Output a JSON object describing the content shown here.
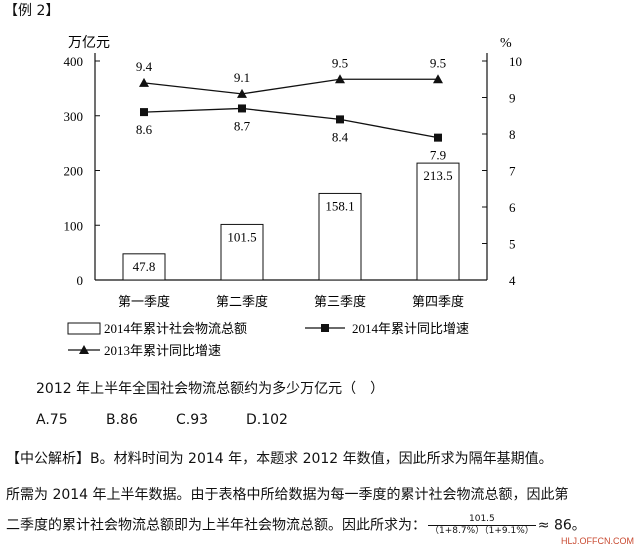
{
  "example_tag": "【例 2】",
  "chart_data": {
    "type": "bar+line",
    "left_axis_unit": "万亿元",
    "right_axis_unit": "%",
    "categories": [
      "第一季度",
      "第二季度",
      "第三季度",
      "第四季度"
    ],
    "left_ylim": [
      0,
      400
    ],
    "left_ticks": [
      0,
      100,
      200,
      300,
      400
    ],
    "right_ylim": [
      4,
      10
    ],
    "right_ticks": [
      4,
      5,
      6,
      7,
      8,
      9,
      10
    ],
    "series": [
      {
        "name": "2014年累计社会物流总额",
        "kind": "bar",
        "axis": "left",
        "values": [
          47.8,
          101.5,
          158.1,
          213.5
        ]
      },
      {
        "name": "2014年累计同比增速",
        "kind": "line",
        "marker": "square",
        "axis": "right",
        "values": [
          8.6,
          8.7,
          8.4,
          7.9
        ]
      },
      {
        "name": "2013年累计同比增速",
        "kind": "line",
        "marker": "triangle",
        "axis": "right",
        "values": [
          9.4,
          9.1,
          9.5,
          9.5
        ]
      }
    ],
    "grid": false,
    "legend_placement": "bottom"
  },
  "question": "2012 年上半年全国社会物流总额约为多少万亿元（　）",
  "options": [
    "A.75",
    "B.86",
    "C.93",
    "D.102"
  ],
  "analysis": {
    "line1": "【中公解析】B。材料时间为 2014 年，本题求 2012 年数值，因此所求为隔年基期值。",
    "line2": "所需为 2014 年上半年数据。由于表格中所给数据为每一季度的累计社会物流总额，因此第",
    "line3_prefix": "二季度的累计社会物流总额即为上半年社会物流总额。因此所求为：",
    "frac_num": "101.5",
    "frac_den": "（1+8.7%）（1+9.1%）",
    "line3_suffix": "≈ 86。"
  },
  "watermark": "HLJ.OFFCN.COM"
}
